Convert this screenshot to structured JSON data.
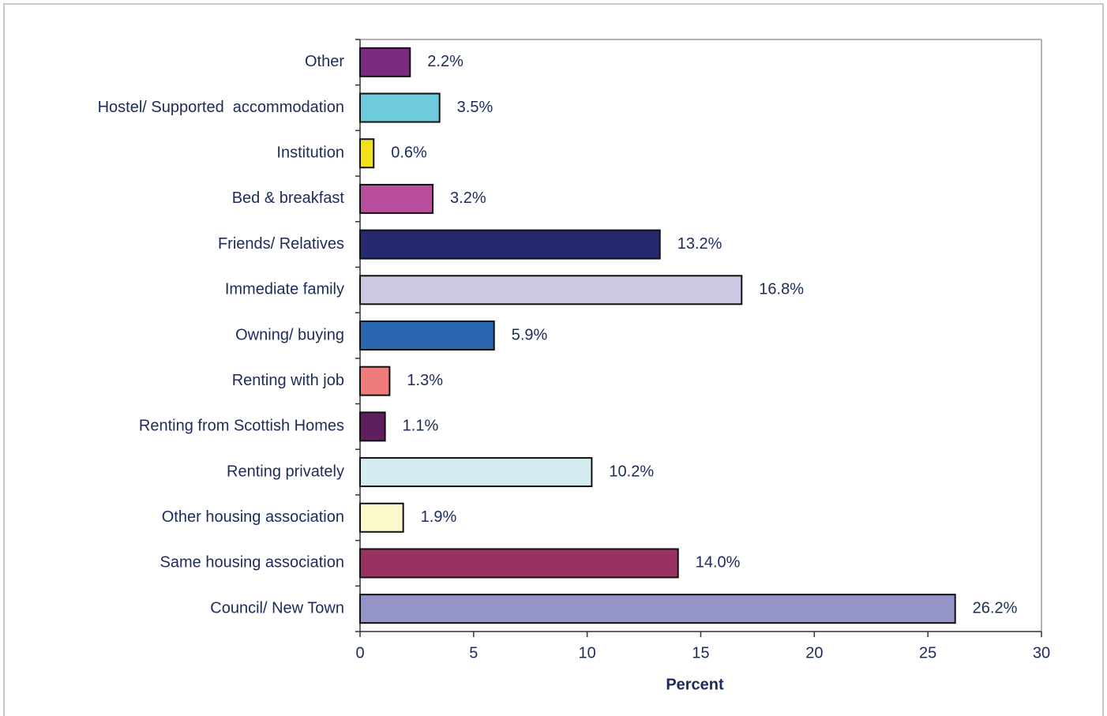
{
  "chart_data": {
    "type": "bar",
    "orientation": "horizontal",
    "categories": [
      "Other",
      "Hostel/ Supported  accommodation",
      "Institution",
      "Bed & breakfast",
      "Friends/ Relatives",
      "Immediate family",
      "Owning/ buying",
      "Renting with job",
      "Renting from Scottish Homes",
      "Renting privately",
      "Other housing association",
      "Same housing association",
      "Council/ New Town"
    ],
    "values": [
      2.2,
      3.5,
      0.6,
      3.2,
      13.2,
      16.8,
      5.9,
      1.3,
      1.1,
      10.2,
      1.9,
      14.0,
      26.2
    ],
    "value_labels": [
      "2.2%",
      "3.5%",
      "0.6%",
      "3.2%",
      "13.2%",
      "16.8%",
      "5.9%",
      "1.3%",
      "1.1%",
      "10.2%",
      "1.9%",
      "14.0%",
      "26.2%"
    ],
    "colors": [
      "#7b2a7f",
      "#6dcbdc",
      "#f2e21b",
      "#b94e9c",
      "#252a6f",
      "#ccc8e4",
      "#2a66b0",
      "#f07b7b",
      "#5f1f5e",
      "#d3edf3",
      "#fbf8cc",
      "#9a3163",
      "#9494c8"
    ],
    "xlabel": "Percent",
    "xlim": [
      0,
      30
    ],
    "xticks": [
      0,
      5,
      10,
      15,
      20,
      25,
      30
    ],
    "grid": false
  }
}
